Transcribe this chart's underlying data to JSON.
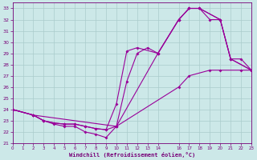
{
  "xlabel": "Windchill (Refroidissement éolien,°C)",
  "bg_color": "#cce8e8",
  "line_color": "#990099",
  "grid_color": "#aacccc",
  "xlim": [
    0,
    23
  ],
  "ylim": [
    21,
    33.5
  ],
  "xticks": [
    0,
    1,
    2,
    3,
    4,
    5,
    6,
    7,
    8,
    9,
    10,
    11,
    12,
    13,
    14,
    16,
    17,
    18,
    19,
    20,
    21,
    22,
    23
  ],
  "yticks": [
    21,
    22,
    23,
    24,
    25,
    26,
    27,
    28,
    29,
    30,
    31,
    32,
    33
  ],
  "curves": [
    {
      "x": [
        0,
        2,
        3,
        4,
        5,
        6,
        7,
        8,
        9,
        10,
        11,
        12,
        13,
        14,
        16,
        17,
        18,
        19,
        20,
        21,
        22,
        23
      ],
      "y": [
        24,
        23.5,
        23,
        22.8,
        22.7,
        22.7,
        22.5,
        22.3,
        22.2,
        22.5,
        26.5,
        29,
        29.5,
        29,
        32,
        33,
        33,
        32,
        32,
        28.5,
        28.5,
        27.5
      ]
    },
    {
      "x": [
        0,
        2,
        3,
        4,
        5,
        6,
        7,
        8,
        9,
        10,
        11,
        12,
        14,
        16,
        17,
        18,
        20,
        21,
        23
      ],
      "y": [
        24,
        23.5,
        23,
        22.8,
        22.7,
        22.7,
        22.5,
        22.3,
        22.2,
        24.5,
        29.2,
        29.5,
        29,
        32,
        33,
        33,
        32,
        28.5,
        27.5
      ]
    },
    {
      "x": [
        0,
        2,
        10,
        14,
        16,
        17,
        18,
        20,
        21,
        23
      ],
      "y": [
        24,
        23.5,
        22.5,
        29,
        32,
        33,
        33,
        32,
        28.5,
        27.5
      ]
    },
    {
      "x": [
        0,
        2,
        3,
        4,
        5,
        6,
        7,
        8,
        9,
        10,
        16,
        17,
        19,
        20,
        22,
        23
      ],
      "y": [
        24,
        23.5,
        23,
        22.7,
        22.5,
        22.5,
        22,
        21.8,
        21.5,
        22.5,
        26,
        27,
        27.5,
        27.5,
        27.5,
        27.5
      ]
    }
  ]
}
